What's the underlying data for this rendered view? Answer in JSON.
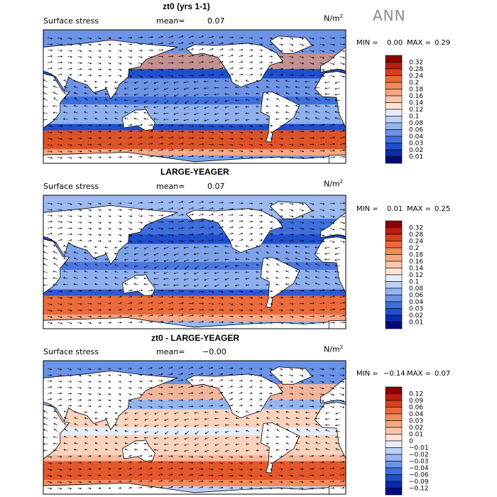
{
  "season": "ANN",
  "panels": [
    {
      "id": "p1",
      "title": "zt0 (yrs 1-1)",
      "variable": "Surface stress",
      "mean_label": "mean=",
      "mean_value": "0.07",
      "units": "N/m",
      "units_sup": "2",
      "min_label": "MIN =",
      "min_value": "0.00",
      "max_label": "MAX =",
      "max_value": "0.29"
    },
    {
      "id": "p2",
      "title": "LARGE-YEAGER",
      "variable": "Surface stress",
      "mean_label": "mean=",
      "mean_value": "0.07",
      "units": "N/m",
      "units_sup": "2",
      "min_label": "MIN =",
      "min_value": "0.01",
      "max_label": "MAX =",
      "max_value": "0.25"
    },
    {
      "id": "p3",
      "title": "zt0 - LARGE-YEAGER",
      "variable": "Surface stress",
      "mean_label": "mean=",
      "mean_value": "−0.00",
      "units": "N/m",
      "units_sup": "2",
      "min_label": "MIN =",
      "min_value": "−0.14",
      "max_label": "MAX =",
      "max_value": "0.07"
    }
  ],
  "chart_data": [
    {
      "type": "heatmap",
      "title": "zt0 (yrs 1-1)",
      "variable": "Surface stress",
      "units": "N/m^2",
      "mean": 0.07,
      "min": 0.0,
      "max": 0.29,
      "colorbar_levels": [
        "0.32",
        "0.28",
        "0.24",
        "0.2",
        "0.18",
        "0.16",
        "0.14",
        "0.12",
        "0.1",
        "0.08",
        "0.06",
        "0.04",
        "0.03",
        "0.02",
        "0.01"
      ],
      "colorbar_colors": [
        "#8b0000",
        "#b3200f",
        "#d6401c",
        "#ea6a3c",
        "#f38a5c",
        "#f7a882",
        "#fbc6a8",
        "#fde4d2",
        "#e6eefc",
        "#bcd0f6",
        "#94b4ef",
        "#6a92e6",
        "#3f6fdc",
        "#1f4fcf",
        "#0b2bb0",
        "#000c7a"
      ]
    },
    {
      "type": "heatmap",
      "title": "LARGE-YEAGER",
      "variable": "Surface stress",
      "units": "N/m^2",
      "mean": 0.07,
      "min": 0.01,
      "max": 0.25,
      "colorbar_levels": [
        "0.32",
        "0.28",
        "0.24",
        "0.2",
        "0.18",
        "0.16",
        "0.14",
        "0.12",
        "0.1",
        "0.08",
        "0.06",
        "0.04",
        "0.03",
        "0.02",
        "0.01"
      ],
      "colorbar_colors": [
        "#8b0000",
        "#b3200f",
        "#d6401c",
        "#ea6a3c",
        "#f38a5c",
        "#f7a882",
        "#fbc6a8",
        "#fde4d2",
        "#e6eefc",
        "#bcd0f6",
        "#94b4ef",
        "#6a92e6",
        "#3f6fdc",
        "#1f4fcf",
        "#0b2bb0",
        "#000c7a"
      ]
    },
    {
      "type": "heatmap",
      "title": "zt0 - LARGE-YEAGER",
      "variable": "Surface stress",
      "units": "N/m^2",
      "mean": -0.0,
      "min": -0.14,
      "max": 0.07,
      "colorbar_levels": [
        "0.12",
        "0.09",
        "0.06",
        "0.04",
        "0.03",
        "0.02",
        "0.01",
        "0",
        "−0.01",
        "−0.02",
        "−0.03",
        "−0.04",
        "−0.06",
        "−0.09",
        "−0.12"
      ],
      "colorbar_colors": [
        "#8b0000",
        "#b3200f",
        "#d6401c",
        "#ea6a3c",
        "#f38a5c",
        "#f7a882",
        "#fbc6a8",
        "#fde4d2",
        "#e6eefc",
        "#bcd0f6",
        "#94b4ef",
        "#6a92e6",
        "#3f6fdc",
        "#1f4fcf",
        "#0b2bb0",
        "#000c7a"
      ]
    }
  ]
}
